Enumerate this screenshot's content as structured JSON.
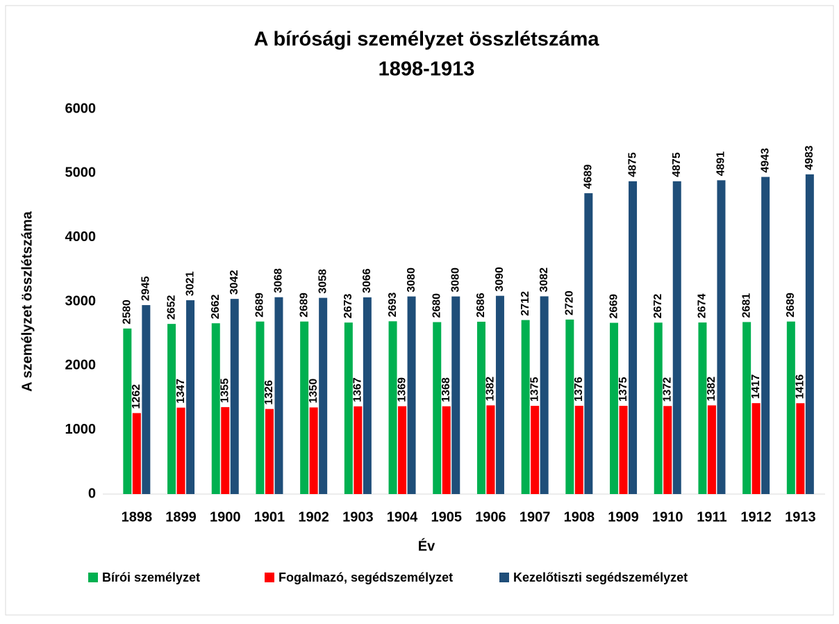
{
  "chart_data": {
    "type": "bar",
    "title": "A bírósági személyzet összlétszáma",
    "subtitle": "1898-1913",
    "x_label": "Év",
    "y_label": "A személyzet összlétszáma",
    "categories": [
      "1898",
      "1899",
      "1900",
      "1901",
      "1902",
      "1903",
      "1904",
      "1905",
      "1906",
      "1907",
      "1908",
      "1909",
      "1910",
      "1911",
      "1912",
      "1913"
    ],
    "series": [
      {
        "name": "Bírói személyzet",
        "color": "#00b050",
        "values": [
          2580,
          2652,
          2662,
          2689,
          2689,
          2673,
          2693,
          2680,
          2686,
          2712,
          2720,
          2669,
          2672,
          2674,
          2681,
          2689
        ]
      },
      {
        "name": "Fogalmazó, segédszemélyzet",
        "color": "#ff0000",
        "values": [
          1262,
          1347,
          1355,
          1326,
          1350,
          1367,
          1369,
          1368,
          1382,
          1375,
          1376,
          1375,
          1372,
          1382,
          1417,
          1416
        ]
      },
      {
        "name": "Kezelőtiszti segédszemélyzet",
        "color": "#1f4e79",
        "values": [
          2945,
          3021,
          3042,
          3068,
          3058,
          3066,
          3080,
          3080,
          3090,
          3082,
          4689,
          4875,
          4875,
          4891,
          4943,
          4983
        ]
      }
    ],
    "ylim": [
      0,
      6000
    ],
    "yticks": [
      0,
      1000,
      2000,
      3000,
      4000,
      5000,
      6000
    ],
    "grid": false,
    "legend": "bottom"
  }
}
